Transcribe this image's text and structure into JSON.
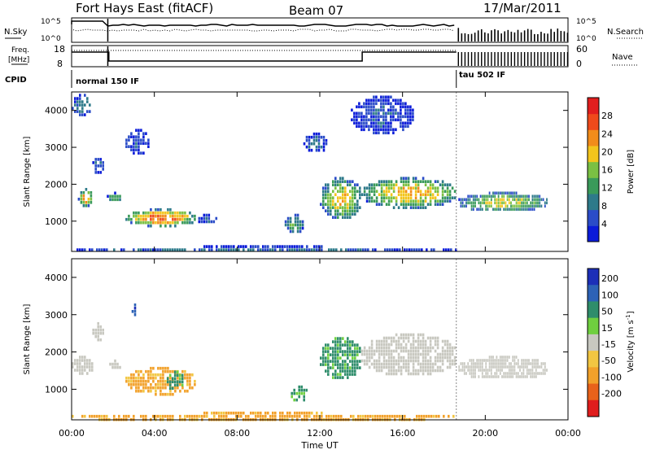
{
  "header": {
    "station": "Fort Hays East (fitACF)",
    "beam": "Beam 07",
    "date": "17/Mar/2011"
  },
  "noise_panel": {
    "left_label": "N.Sky",
    "right_label": "N.Search",
    "left_ticks": [
      "10^5",
      "10^0"
    ],
    "right_ticks": [
      "10^5",
      "10^0"
    ]
  },
  "freq_panel": {
    "left_label_1": "Freq.",
    "left_label_2": "[MHz]",
    "right_label": "Nave",
    "left_ticks": [
      "18",
      "8"
    ],
    "right_ticks": [
      "60",
      "0"
    ]
  },
  "cpid": {
    "label": "CPID",
    "modes": [
      {
        "name": "normal 150 IF",
        "start_h": 0,
        "end_h": 18.6
      },
      {
        "name": "tau 502 IF",
        "start_h": 18.6,
        "end_h": 24
      }
    ]
  },
  "colors": {
    "power_scale": [
      "#0b1bd9",
      "#2b4cc8",
      "#2e7a8a",
      "#3a9a5a",
      "#7ac043",
      "#f3c51c",
      "#f28c1a",
      "#ef4a1b",
      "#e11e1e"
    ],
    "velocity_scale": [
      "#1c2fb8",
      "#2d62b6",
      "#2f8d6b",
      "#6fcf3f",
      "#c8c8c0",
      "#f2c642",
      "#f2a12a",
      "#e8621a",
      "#e01d1d"
    ]
  },
  "chart_data": [
    {
      "type": "heatmap",
      "name_of_panel": "power",
      "xlabel": "Time UT",
      "ylabel": "Slant Range [km]",
      "x_ticks": [
        "00:00",
        "04:00",
        "08:00",
        "12:00",
        "16:00",
        "20:00",
        "00:00"
      ],
      "xlim_hours": [
        0,
        24
      ],
      "y_ticks": [
        1000,
        2000,
        3000,
        4000
      ],
      "ylim_km": [
        180,
        4500
      ],
      "colorbar": {
        "label": "Power [dB]",
        "ticks": [
          4,
          8,
          12,
          16,
          20,
          24,
          28
        ],
        "range": [
          0,
          32
        ]
      },
      "echo_regions": [
        {
          "t_start": 0.3,
          "t_end": 1.0,
          "r_start": 1450,
          "r_end": 1900,
          "value": 24
        },
        {
          "t_start": 0.0,
          "t_end": 0.9,
          "r_start": 3900,
          "r_end": 4450,
          "value": 10
        },
        {
          "t_start": 1.0,
          "t_end": 1.5,
          "r_start": 2300,
          "r_end": 2800,
          "value": 8
        },
        {
          "t_start": 1.7,
          "t_end": 2.4,
          "r_start": 1550,
          "r_end": 1800,
          "value": 14
        },
        {
          "t_start": 2.6,
          "t_end": 3.7,
          "r_start": 2800,
          "r_end": 3500,
          "value": 6
        },
        {
          "t_start": 2.6,
          "t_end": 6.0,
          "r_start": 900,
          "r_end": 1350,
          "value": 26
        },
        {
          "t_start": 6.0,
          "t_end": 7.0,
          "r_start": 950,
          "r_end": 1200,
          "value": 6
        },
        {
          "t_start": 10.3,
          "t_end": 11.2,
          "r_start": 700,
          "r_end": 1200,
          "value": 14
        },
        {
          "t_start": 11.2,
          "t_end": 12.3,
          "r_start": 2900,
          "r_end": 3400,
          "value": 8
        },
        {
          "t_start": 12.0,
          "t_end": 14.0,
          "r_start": 1100,
          "r_end": 2200,
          "value": 20
        },
        {
          "t_start": 14.0,
          "t_end": 18.6,
          "r_start": 1400,
          "r_end": 2200,
          "value": 22
        },
        {
          "t_start": 13.5,
          "t_end": 16.5,
          "r_start": 3400,
          "r_end": 4400,
          "value": 6
        },
        {
          "t_start": 18.7,
          "t_end": 23.0,
          "r_start": 1300,
          "r_end": 1800,
          "value": 18
        },
        {
          "t_start": 0.0,
          "t_end": 18.6,
          "r_start": 180,
          "r_end": 350,
          "value": 8
        }
      ]
    },
    {
      "type": "heatmap",
      "name_of_panel": "velocity",
      "xlabel": "Time UT",
      "ylabel": "Slant Range [km]",
      "x_ticks": [
        "00:00",
        "04:00",
        "08:00",
        "12:00",
        "16:00",
        "20:00",
        "00:00"
      ],
      "xlim_hours": [
        0,
        24
      ],
      "y_ticks": [
        1000,
        2000,
        3000,
        4000
      ],
      "ylim_km": [
        180,
        4500
      ],
      "colorbar": {
        "label": "Velocity [m s^-1]",
        "ticks": [
          "200",
          "100",
          "50",
          "15",
          "-15",
          "-50",
          "-100",
          "-200"
        ]
      },
      "echo_regions": [
        {
          "t_start": 0.0,
          "t_end": 1.0,
          "r_start": 1400,
          "r_end": 1900,
          "value": 0
        },
        {
          "t_start": 1.0,
          "t_end": 1.5,
          "r_start": 2300,
          "r_end": 2800,
          "value": 0
        },
        {
          "t_start": 1.7,
          "t_end": 2.4,
          "r_start": 1550,
          "r_end": 1800,
          "value": 0
        },
        {
          "t_start": 2.6,
          "t_end": 6.0,
          "r_start": 900,
          "r_end": 1600,
          "value": -40
        },
        {
          "t_start": 4.6,
          "t_end": 5.4,
          "r_start": 1000,
          "r_end": 1500,
          "value": 40
        },
        {
          "t_start": 10.6,
          "t_end": 11.4,
          "r_start": 700,
          "r_end": 1100,
          "value": 40
        },
        {
          "t_start": 12.0,
          "t_end": 14.0,
          "r_start": 1300,
          "r_end": 2400,
          "value": 40
        },
        {
          "t_start": 14.0,
          "t_end": 18.6,
          "r_start": 1400,
          "r_end": 2500,
          "value": 0
        },
        {
          "t_start": 18.7,
          "t_end": 23.0,
          "r_start": 1300,
          "r_end": 1900,
          "value": 0
        },
        {
          "t_start": 0.0,
          "t_end": 18.6,
          "r_start": 180,
          "r_end": 400,
          "value": -40
        },
        {
          "t_start": 2.9,
          "t_end": 3.1,
          "r_start": 3000,
          "r_end": 3300,
          "value": 150
        }
      ]
    }
  ]
}
